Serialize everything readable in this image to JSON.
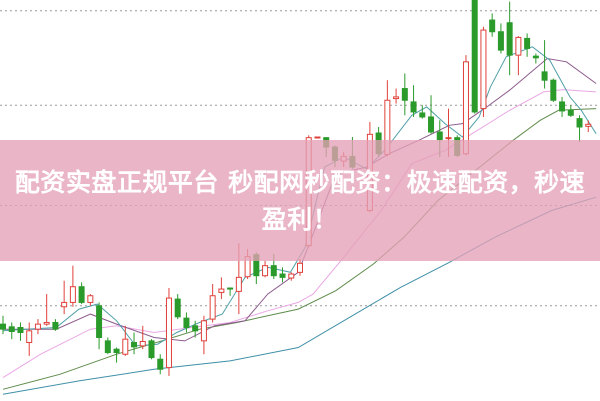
{
  "banner": {
    "title": "配资实盘正规平台 秒配网秒配资：极速配资，秒速盈利！"
  },
  "chart_data": {
    "type": "candlestick",
    "title": "",
    "xlabel": "",
    "ylabel": "",
    "xlim": [
      0,
      68
    ],
    "ylim": [
      0,
      120
    ],
    "grid": "dotted horizontal",
    "grid_levels": [
      116.8,
      88.5,
      58.5,
      28.5
    ],
    "colors": {
      "up": "#e0403a",
      "down": "#2a9a2a",
      "ma5": "#4fa0a8",
      "ma10": "#8c5a8c",
      "ma20": "#eaa8e4",
      "ma30": "#5f8c4c",
      "ma60": "#3f8fa8",
      "grid": "#9a9a9a"
    },
    "candles_ohlc": [
      [
        23,
        25.5,
        20,
        21.5
      ],
      [
        22.2,
        23.5,
        18.5,
        20.8
      ],
      [
        22,
        23.5,
        18,
        20.5
      ],
      [
        17.5,
        23.5,
        13.5,
        21
      ],
      [
        21.5,
        24.5,
        20,
        23
      ],
      [
        23,
        32,
        22.5,
        23.5
      ],
      [
        23.5,
        24.5,
        21,
        21.5
      ],
      [
        28.2,
        36,
        26,
        29.5
      ],
      [
        29.5,
        40.5,
        28.2,
        34.2
      ],
      [
        34.2,
        35.5,
        29,
        29.5
      ],
      [
        29.5,
        32,
        28.5,
        31.5
      ],
      [
        28.5,
        29.5,
        15.5,
        19
      ],
      [
        18,
        19,
        14,
        14.5
      ],
      [
        15.5,
        16,
        11.5,
        14.5
      ],
      [
        14,
        22.5,
        13.5,
        18.5
      ],
      [
        17.5,
        20.5,
        14,
        16.2
      ],
      [
        16.5,
        22.5,
        15.5,
        17.8
      ],
      [
        18,
        18.5,
        12.5,
        13
      ],
      [
        12.5,
        14,
        8,
        9.5
      ],
      [
        10,
        33.8,
        7.5,
        30.8
      ],
      [
        30.5,
        32,
        24.5,
        25.2
      ],
      [
        24.8,
        26.5,
        20.5,
        22
      ],
      [
        22.5,
        24,
        19,
        21
      ],
      [
        18,
        25.5,
        14,
        24
      ],
      [
        24.5,
        35,
        23.5,
        31.5
      ],
      [
        32.5,
        37,
        30.5,
        33.5
      ],
      [
        33.8,
        34,
        31.5,
        33.5
      ],
      [
        32.8,
        47.2,
        26,
        37
      ],
      [
        37.2,
        45.5,
        36.5,
        43.2
      ],
      [
        43.8,
        44.5,
        35,
        37.5
      ],
      [
        37.5,
        42,
        37,
        40.5
      ],
      [
        40.5,
        44,
        36.5,
        37.5
      ],
      [
        38,
        40,
        35.5,
        37
      ],
      [
        36.8,
        38.5,
        36,
        38
      ],
      [
        38.5,
        42.5,
        37.5,
        41.2
      ],
      [
        46.5,
        79.5,
        46,
        78.8
      ],
      [
        78.7,
        79,
        78.7,
        79
      ],
      [
        78.8,
        79,
        73,
        76
      ],
      [
        76,
        76.5,
        70,
        72
      ],
      [
        71.8,
        74.5,
        70,
        73.2
      ],
      [
        73.2,
        79,
        69.5,
        70
      ],
      null,
      [
        57,
        83.5,
        56.5,
        79.8
      ],
      [
        80.2,
        82,
        73,
        74
      ],
      [
        73.8,
        96,
        73.2,
        90
      ],
      [
        90.5,
        93.5,
        89,
        91
      ],
      [
        93.5,
        98,
        85.5,
        90
      ],
      [
        89.5,
        94.5,
        85,
        86.5
      ],
      [
        86.2,
        88.5,
        84.5,
        85
      ],
      [
        85,
        91.5,
        80,
        80.5
      ],
      [
        80.5,
        84,
        73,
        78.2
      ],
      [
        78.5,
        87.5,
        73,
        78.8
      ],
      [
        78.8,
        79.5,
        73,
        73.5
      ],
      [
        74,
        103.5,
        73.5,
        101.5
      ],
      [
        120,
        120,
        86,
        86.5
      ],
      [
        87.5,
        112,
        85,
        111
      ],
      [
        114,
        116,
        109,
        110.5
      ],
      [
        110.5,
        113,
        104,
        105
      ],
      [
        113.2,
        119.5,
        97.5,
        103.5
      ],
      [
        103.5,
        109.2,
        97.5,
        108.8
      ],
      [
        108.5,
        110,
        103,
        105.5
      ],
      [
        103.2,
        104,
        101,
        102.7
      ],
      [
        98.5,
        108,
        93.5,
        96
      ],
      [
        96,
        96.5,
        89.5,
        90
      ],
      [
        89.5,
        91,
        85,
        86.8
      ],
      [
        87,
        88.5,
        85,
        85.5
      ],
      [
        84.5,
        85.5,
        77.5,
        82
      ],
      [
        82.2,
        84,
        80.5,
        82.8
      ]
    ],
    "moving_averages": [
      {
        "key": "ma5",
        "points": [
          [
            0,
            21
          ],
          [
            2.6,
            21.5
          ],
          [
            6.1,
            22
          ],
          [
            8.7,
            27.5
          ],
          [
            10.8,
            29
          ],
          [
            13,
            24
          ],
          [
            15.2,
            16.5
          ],
          [
            17.7,
            17
          ],
          [
            19.9,
            20.5
          ],
          [
            22.5,
            23.5
          ],
          [
            25.1,
            26
          ],
          [
            27.7,
            37
          ],
          [
            30.3,
            40
          ],
          [
            32.9,
            38.5
          ],
          [
            34.6,
            46
          ],
          [
            36.8,
            70
          ],
          [
            39,
            73
          ],
          [
            41.6,
            69.5
          ],
          [
            43.7,
            75
          ],
          [
            46.8,
            85.5
          ],
          [
            48.5,
            88
          ],
          [
            50.6,
            83
          ],
          [
            52.6,
            79
          ],
          [
            54.5,
            85
          ],
          [
            55.8,
            94
          ],
          [
            57.6,
            103
          ],
          [
            60.6,
            106
          ],
          [
            62.6,
            102
          ],
          [
            64.9,
            91
          ],
          [
            66.2,
            87
          ],
          [
            67.9,
            80
          ]
        ]
      },
      {
        "key": "ma10",
        "points": [
          [
            0,
            21.5
          ],
          [
            6.1,
            21.5
          ],
          [
            10,
            26
          ],
          [
            13,
            23
          ],
          [
            17.3,
            19
          ],
          [
            20.8,
            18
          ],
          [
            24.2,
            22.5
          ],
          [
            27.7,
            24
          ],
          [
            30.3,
            32
          ],
          [
            33.8,
            38.5
          ],
          [
            35.5,
            50
          ],
          [
            38.1,
            68
          ],
          [
            41.6,
            70
          ],
          [
            44.2,
            74
          ],
          [
            47.6,
            78
          ],
          [
            51.1,
            82.5
          ],
          [
            52.6,
            83
          ],
          [
            55.4,
            88
          ],
          [
            58,
            93
          ],
          [
            62.3,
            102.5
          ],
          [
            64.5,
            101.5
          ],
          [
            67.9,
            95
          ]
        ]
      },
      {
        "key": "ma20",
        "points": [
          [
            0,
            7
          ],
          [
            4.3,
            14
          ],
          [
            10,
            21.5
          ],
          [
            13,
            22.5
          ],
          [
            17.3,
            20.5
          ],
          [
            21.6,
            22
          ],
          [
            26,
            23.5
          ],
          [
            30.3,
            27
          ],
          [
            33.8,
            29.5
          ],
          [
            35.5,
            32
          ],
          [
            39,
            43
          ],
          [
            43.3,
            57
          ],
          [
            46.8,
            71
          ],
          [
            50.6,
            75
          ],
          [
            53.7,
            80
          ],
          [
            58,
            87
          ],
          [
            61.9,
            92.5
          ],
          [
            64.1,
            93.2
          ],
          [
            67.9,
            92.5
          ]
        ]
      },
      {
        "key": "ma30",
        "points": [
          [
            0,
            3.5
          ],
          [
            6.5,
            8
          ],
          [
            13,
            14
          ],
          [
            18.2,
            18
          ],
          [
            22.5,
            21.5
          ],
          [
            26.8,
            23.5
          ],
          [
            30.3,
            25.5
          ],
          [
            33.8,
            27.5
          ],
          [
            38.1,
            33
          ],
          [
            42.4,
            41
          ],
          [
            45.9,
            49
          ],
          [
            49.8,
            60
          ],
          [
            54.1,
            69
          ],
          [
            58.4,
            78
          ],
          [
            61.5,
            84
          ],
          [
            63.6,
            87
          ],
          [
            67.9,
            87.5
          ]
        ]
      },
      {
        "key": "ma60",
        "points": [
          [
            0,
            2
          ],
          [
            8.7,
            6
          ],
          [
            17.3,
            9.5
          ],
          [
            26,
            12
          ],
          [
            33.8,
            16
          ],
          [
            39,
            24
          ],
          [
            45.5,
            34
          ],
          [
            51.1,
            41.5
          ],
          [
            56.3,
            49
          ],
          [
            62.8,
            57
          ],
          [
            67.9,
            61
          ]
        ]
      }
    ]
  }
}
